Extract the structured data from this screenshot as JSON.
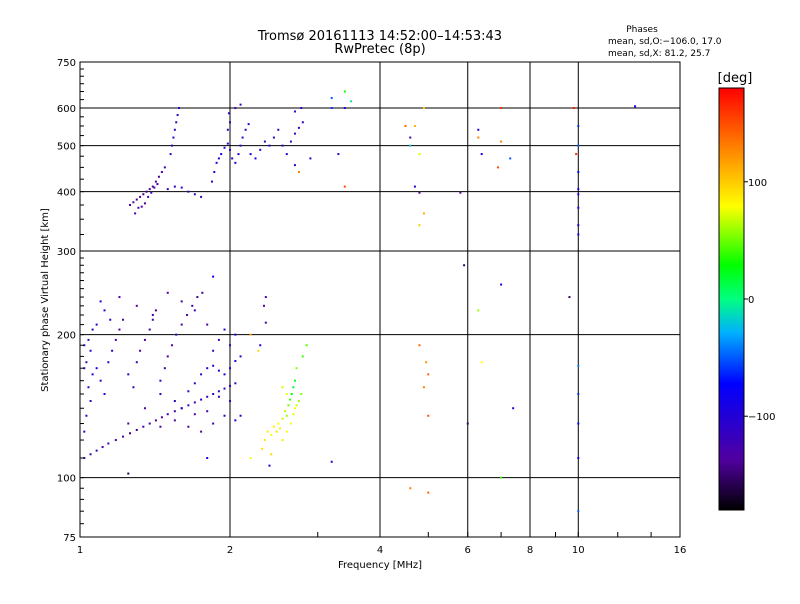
{
  "chart_data": {
    "type": "scatter",
    "title": "Tromsø 20161113 14:52:00–14:53:43",
    "subtitle": "RwPretec (8p)",
    "xlabel": "Frequency [MHz]",
    "ylabel": "Stationary phase Virtual Height [km]",
    "x_scale": "log",
    "y_scale": "log",
    "xlim": [
      1,
      16
    ],
    "ylim": [
      75,
      750
    ],
    "x_ticks": [
      1,
      2,
      4,
      6,
      8,
      10,
      16
    ],
    "x_tick_labels": [
      "1",
      "2",
      "4",
      "6",
      "8",
      "10",
      "16"
    ],
    "x_grid_lines": [
      2,
      4,
      6,
      8,
      10
    ],
    "y_ticks": [
      75,
      100,
      200,
      300,
      400,
      500,
      600,
      750
    ],
    "y_tick_labels": [
      "75",
      "100",
      "200",
      "300",
      "400",
      "500",
      "600",
      "750"
    ],
    "y_grid_lines": [
      100,
      200,
      300,
      400,
      500,
      600
    ],
    "grid": true,
    "stats": {
      "header": "Phases",
      "line1": "mean, sd,O:−106.0, 17.0",
      "line2": "mean, sd,X:  81.2, 25.7"
    },
    "colorbar": {
      "label": "[deg]",
      "range": [
        -180,
        180
      ],
      "ticks": [
        100,
        0,
        -100
      ],
      "tick_labels": [
        "100",
        "0",
        "−100"
      ]
    },
    "points": [
      [
        1.02,
        110,
        -125
      ],
      [
        1.05,
        112,
        -110
      ],
      [
        1.08,
        114,
        -120
      ],
      [
        1.11,
        116,
        -130
      ],
      [
        1.14,
        118,
        -125
      ],
      [
        1.18,
        120,
        -140
      ],
      [
        1.22,
        122,
        -135
      ],
      [
        1.26,
        124,
        -150
      ],
      [
        1.3,
        126,
        -145
      ],
      [
        1.34,
        128,
        -130
      ],
      [
        1.38,
        130,
        -120
      ],
      [
        1.42,
        132,
        -140
      ],
      [
        1.46,
        134,
        -135
      ],
      [
        1.5,
        136,
        -125
      ],
      [
        1.55,
        138,
        -130
      ],
      [
        1.6,
        140,
        -120
      ],
      [
        1.65,
        142,
        -115
      ],
      [
        1.7,
        144,
        -125
      ],
      [
        1.75,
        146,
        -110
      ],
      [
        1.8,
        148,
        -120
      ],
      [
        1.85,
        150,
        -105
      ],
      [
        1.9,
        152,
        -112
      ],
      [
        1.95,
        154,
        -118
      ],
      [
        2.0,
        156,
        -108
      ],
      [
        2.05,
        158,
        -115
      ],
      [
        1.02,
        125,
        -110
      ],
      [
        1.03,
        135,
        -105
      ],
      [
        1.05,
        145,
        -115
      ],
      [
        1.04,
        155,
        -110
      ],
      [
        1.06,
        165,
        -105
      ],
      [
        1.03,
        175,
        -115
      ],
      [
        1.05,
        185,
        -108
      ],
      [
        1.04,
        195,
        -120
      ],
      [
        1.06,
        205,
        -115
      ],
      [
        1.08,
        170,
        -100
      ],
      [
        1.1,
        160,
        -110
      ],
      [
        1.12,
        150,
        -105
      ],
      [
        1.14,
        175,
        -115
      ],
      [
        1.16,
        185,
        -110
      ],
      [
        1.18,
        195,
        -125
      ],
      [
        1.2,
        205,
        -130
      ],
      [
        1.22,
        215,
        -135
      ],
      [
        1.25,
        165,
        -110
      ],
      [
        1.28,
        155,
        -115
      ],
      [
        1.3,
        175,
        -120
      ],
      [
        1.32,
        185,
        -128
      ],
      [
        1.35,
        195,
        -130
      ],
      [
        1.38,
        205,
        -135
      ],
      [
        1.4,
        215,
        -140
      ],
      [
        1.42,
        225,
        -145
      ],
      [
        1.45,
        160,
        -120
      ],
      [
        1.48,
        170,
        -125
      ],
      [
        1.5,
        180,
        -130
      ],
      [
        1.53,
        190,
        -135
      ],
      [
        1.56,
        200,
        -125
      ],
      [
        1.6,
        210,
        -130
      ],
      [
        1.64,
        220,
        -135
      ],
      [
        1.68,
        230,
        -140
      ],
      [
        1.72,
        240,
        -145
      ],
      [
        1.76,
        245,
        -130
      ],
      [
        1.45,
        150,
        -115
      ],
      [
        1.55,
        145,
        -110
      ],
      [
        1.6,
        140,
        -108
      ],
      [
        1.65,
        152,
        -112
      ],
      [
        1.7,
        158,
        -118
      ],
      [
        1.75,
        165,
        -110
      ],
      [
        1.8,
        170,
        -105
      ],
      [
        1.85,
        172,
        -100
      ],
      [
        1.9,
        168,
        -98
      ],
      [
        1.95,
        165,
        -95
      ],
      [
        2.0,
        170,
        -110
      ],
      [
        2.05,
        176,
        -100
      ],
      [
        2.1,
        180,
        -105
      ],
      [
        1.85,
        185,
        -120
      ],
      [
        1.9,
        195,
        -125
      ],
      [
        1.95,
        205,
        -118
      ],
      [
        2.0,
        190,
        -112
      ],
      [
        2.05,
        200,
        -108
      ],
      [
        1.8,
        210,
        -130
      ],
      [
        1.7,
        225,
        -125
      ],
      [
        1.6,
        235,
        -128
      ],
      [
        1.5,
        245,
        -130
      ],
      [
        1.4,
        220,
        -126
      ],
      [
        1.3,
        230,
        -132
      ],
      [
        1.2,
        240,
        -128
      ],
      [
        1.1,
        235,
        -100
      ],
      [
        1.12,
        225,
        -108
      ],
      [
        1.15,
        215,
        -114
      ],
      [
        1.08,
        210,
        -104
      ],
      [
        1.02,
        190,
        -106
      ],
      [
        1.02,
        170,
        -112
      ],
      [
        1.25,
        130,
        -140
      ],
      [
        1.35,
        140,
        -135
      ],
      [
        1.45,
        128,
        -140
      ],
      [
        1.55,
        132,
        -138
      ],
      [
        1.65,
        128,
        -132
      ],
      [
        1.75,
        125,
        -136
      ],
      [
        1.85,
        130,
        -125
      ],
      [
        1.95,
        135,
        -115
      ],
      [
        2.05,
        132,
        -108
      ],
      [
        2.1,
        135,
        -104
      ],
      [
        2.0,
        145,
        -112
      ],
      [
        1.9,
        148,
        -118
      ],
      [
        1.8,
        138,
        -125
      ],
      [
        1.7,
        136,
        -130
      ],
      [
        1.26,
        375,
        -140
      ],
      [
        1.28,
        380,
        -135
      ],
      [
        1.3,
        385,
        -145
      ],
      [
        1.32,
        390,
        -140
      ],
      [
        1.34,
        395,
        -150
      ],
      [
        1.36,
        400,
        -145
      ],
      [
        1.38,
        405,
        -138
      ],
      [
        1.4,
        410,
        -142
      ],
      [
        1.42,
        420,
        -135
      ],
      [
        1.44,
        430,
        -140
      ],
      [
        1.46,
        440,
        -130
      ],
      [
        1.48,
        450,
        -125
      ],
      [
        1.29,
        360,
        -130
      ],
      [
        1.31,
        370,
        -135
      ],
      [
        1.33,
        372,
        -128
      ],
      [
        1.35,
        378,
        -132
      ],
      [
        1.37,
        390,
        -128
      ],
      [
        1.39,
        398,
        -125
      ],
      [
        1.41,
        408,
        -120
      ],
      [
        1.43,
        415,
        -118
      ],
      [
        1.5,
        405,
        -115
      ],
      [
        1.55,
        410,
        -110
      ],
      [
        1.6,
        408,
        -112
      ],
      [
        1.65,
        400,
        -118
      ],
      [
        1.7,
        395,
        -115
      ],
      [
        1.75,
        390,
        -120
      ],
      [
        1.52,
        480,
        -110
      ],
      [
        1.53,
        500,
        -115
      ],
      [
        1.54,
        520,
        -108
      ],
      [
        1.55,
        540,
        -112
      ],
      [
        1.56,
        560,
        -118
      ],
      [
        1.57,
        580,
        -110
      ],
      [
        1.58,
        600,
        -115
      ],
      [
        1.84,
        420,
        -108
      ],
      [
        1.86,
        440,
        -112
      ],
      [
        1.88,
        460,
        -100
      ],
      [
        1.9,
        470,
        -105
      ],
      [
        1.92,
        480,
        -98
      ],
      [
        1.95,
        495,
        -102
      ],
      [
        1.98,
        505,
        -96
      ],
      [
        2.0,
        490,
        -100
      ],
      [
        2.02,
        470,
        -95
      ],
      [
        2.05,
        460,
        -98
      ],
      [
        2.08,
        480,
        -102
      ],
      [
        2.1,
        500,
        -105
      ],
      [
        2.12,
        520,
        -110
      ],
      [
        2.15,
        540,
        -108
      ],
      [
        2.18,
        555,
        -112
      ],
      [
        1.98,
        540,
        -115
      ],
      [
        2.0,
        560,
        -118
      ],
      [
        1.99,
        585,
        -120
      ],
      [
        2.05,
        600,
        -125
      ],
      [
        2.1,
        610,
        -120
      ],
      [
        2.2,
        480,
        -100
      ],
      [
        2.25,
        470,
        -102
      ],
      [
        2.3,
        490,
        -110
      ],
      [
        2.35,
        510,
        -115
      ],
      [
        2.4,
        500,
        -108
      ],
      [
        2.45,
        520,
        -112
      ],
      [
        2.5,
        540,
        -115
      ],
      [
        2.55,
        500,
        -110
      ],
      [
        2.6,
        480,
        -105
      ],
      [
        2.65,
        510,
        -112
      ],
      [
        2.7,
        530,
        -118
      ],
      [
        2.75,
        545,
        -115
      ],
      [
        2.8,
        560,
        -120
      ],
      [
        2.7,
        590,
        -118
      ],
      [
        2.78,
        600,
        -115
      ],
      [
        2.9,
        470,
        -110
      ],
      [
        3.2,
        600,
        -60
      ],
      [
        3.2,
        630,
        -50
      ],
      [
        3.4,
        650,
        30
      ],
      [
        3.5,
        620,
        -10
      ],
      [
        3.4,
        600,
        -100
      ],
      [
        3.3,
        480,
        -110
      ],
      [
        3.4,
        410,
        150
      ],
      [
        2.75,
        440,
        130
      ],
      [
        2.7,
        455,
        -110
      ],
      [
        2.42,
        123,
        80
      ],
      [
        2.45,
        128,
        85
      ],
      [
        2.48,
        125,
        90
      ],
      [
        2.5,
        130,
        80
      ],
      [
        2.52,
        127,
        75
      ],
      [
        2.55,
        133,
        70
      ],
      [
        2.58,
        138,
        65
      ],
      [
        2.6,
        135,
        60
      ],
      [
        2.62,
        142,
        50
      ],
      [
        2.64,
        146,
        40
      ],
      [
        2.66,
        150,
        30
      ],
      [
        2.68,
        155,
        20
      ],
      [
        2.7,
        160,
        25
      ],
      [
        2.55,
        120,
        88
      ],
      [
        2.6,
        125,
        82
      ],
      [
        2.65,
        130,
        78
      ],
      [
        2.68,
        136,
        72
      ],
      [
        2.72,
        142,
        68
      ],
      [
        2.75,
        145,
        60
      ],
      [
        2.78,
        150,
        55
      ],
      [
        2.55,
        155,
        70
      ],
      [
        2.6,
        150,
        75
      ],
      [
        2.7,
        140,
        80
      ],
      [
        2.72,
        170,
        55
      ],
      [
        2.8,
        180,
        40
      ],
      [
        2.85,
        190,
        45
      ],
      [
        2.42,
        112,
        95
      ],
      [
        2.35,
        120,
        88
      ],
      [
        2.32,
        115,
        90
      ],
      [
        2.38,
        125,
        86
      ],
      [
        2.36,
        240,
        -130
      ],
      [
        2.34,
        230,
        -125
      ],
      [
        2.36,
        212,
        -128
      ],
      [
        2.3,
        190,
        -100
      ],
      [
        2.28,
        185,
        95
      ],
      [
        2.2,
        110,
        80
      ],
      [
        2.2,
        200,
        110
      ],
      [
        2.4,
        106,
        -100
      ],
      [
        3.2,
        108,
        -100
      ],
      [
        1.8,
        110,
        -90
      ],
      [
        1.25,
        102,
        -160
      ],
      [
        1.85,
        265,
        -80
      ],
      [
        4.5,
        550,
        140
      ],
      [
        4.7,
        550,
        110
      ],
      [
        4.6,
        520,
        -130
      ],
      [
        4.6,
        500,
        -20
      ],
      [
        4.9,
        600,
        100
      ],
      [
        4.8,
        480,
        70
      ],
      [
        4.7,
        410,
        -100
      ],
      [
        4.8,
        398,
        -140
      ],
      [
        4.9,
        360,
        110
      ],
      [
        4.8,
        340,
        100
      ],
      [
        4.9,
        155,
        130
      ],
      [
        4.95,
        175,
        120
      ],
      [
        5.0,
        165,
        140
      ],
      [
        5.0,
        135,
        150
      ],
      [
        4.8,
        190,
        140
      ],
      [
        4.6,
        95,
        130
      ],
      [
        5.0,
        93,
        140
      ],
      [
        5.8,
        398,
        -140
      ],
      [
        5.9,
        280,
        -150
      ],
      [
        6.0,
        130,
        -150
      ],
      [
        6.3,
        540,
        -100
      ],
      [
        6.3,
        520,
        130
      ],
      [
        6.4,
        480,
        -90
      ],
      [
        6.3,
        225,
        60
      ],
      [
        6.4,
        175,
        80
      ],
      [
        6.9,
        450,
        150
      ],
      [
        7.0,
        510,
        130
      ],
      [
        7.0,
        255,
        -100
      ],
      [
        7.0,
        100,
        40
      ],
      [
        7.3,
        470,
        -50
      ],
      [
        7.4,
        140,
        -100
      ],
      [
        7.0,
        600,
        165
      ],
      [
        9.8,
        600,
        170
      ],
      [
        9.9,
        480,
        160
      ],
      [
        9.6,
        240,
        -150
      ],
      [
        10.0,
        550,
        -60
      ],
      [
        10.0,
        500,
        -50
      ],
      [
        10.0,
        440,
        -70
      ],
      [
        10.0,
        405,
        -80
      ],
      [
        10.0,
        395,
        -85
      ],
      [
        10.0,
        370,
        -90
      ],
      [
        10.0,
        340,
        -90
      ],
      [
        10.0,
        325,
        -80
      ],
      [
        10.0,
        172,
        -40
      ],
      [
        10.0,
        150,
        -60
      ],
      [
        10.0,
        130,
        -70
      ],
      [
        10.0,
        110,
        -80
      ],
      [
        10.0,
        85,
        -50
      ],
      [
        13.0,
        605,
        -80
      ]
    ]
  }
}
